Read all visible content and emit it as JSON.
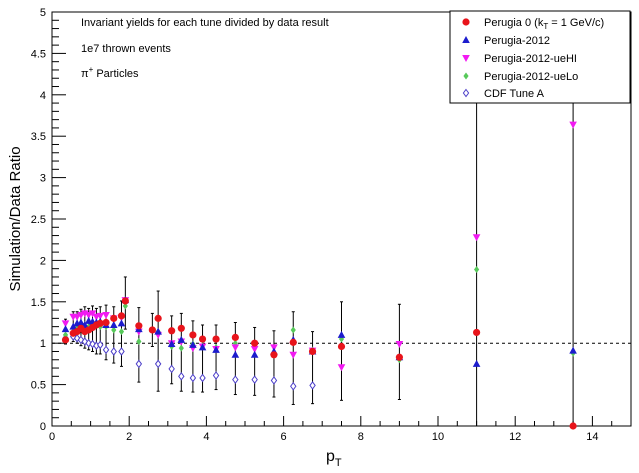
{
  "chart_data": {
    "type": "scatter",
    "xlabel_main": "p",
    "xlabel_sub": "T",
    "ylabel": "Simulation/Data Ratio",
    "xlim": [
      0,
      15
    ],
    "ylim": [
      0,
      5
    ],
    "xticks": [
      0,
      2,
      4,
      6,
      8,
      10,
      12,
      14
    ],
    "yticks": [
      0,
      0.5,
      1,
      1.5,
      2,
      2.5,
      3,
      3.5,
      4,
      4.5,
      5
    ],
    "reference_line": 1,
    "annotations": {
      "line1": "Invariant yields for each tune divided by data result",
      "line2": "1e7 thrown events",
      "line3_main": "π",
      "line3_sup": "+",
      "line3_rest": " Particles"
    },
    "legend_position": "top-right",
    "series": [
      {
        "name": "Perugia 0",
        "name_suffix": " (k",
        "name_sub": "T",
        "name_rest": " = 1 GeV/c)",
        "marker": "circle",
        "color": "#e8141b",
        "fill": true,
        "points": [
          [
            0.35,
            1.04
          ],
          [
            0.55,
            1.12
          ],
          [
            0.65,
            1.14
          ],
          [
            0.75,
            1.18
          ],
          [
            0.85,
            1.14
          ],
          [
            0.95,
            1.16
          ],
          [
            1.05,
            1.19
          ],
          [
            1.15,
            1.22
          ],
          [
            1.25,
            1.24
          ],
          [
            1.4,
            1.25
          ],
          [
            1.6,
            1.3
          ],
          [
            1.8,
            1.33
          ],
          [
            1.9,
            1.51
          ],
          [
            2.25,
            1.21
          ],
          [
            2.6,
            1.16
          ],
          [
            2.75,
            1.3
          ],
          [
            3.1,
            1.15
          ],
          [
            3.35,
            1.18
          ],
          [
            3.65,
            1.1
          ],
          [
            3.9,
            1.05
          ],
          [
            4.25,
            1.05
          ],
          [
            4.75,
            1.07
          ],
          [
            5.25,
            1.0
          ],
          [
            5.75,
            0.86
          ],
          [
            6.25,
            1.01
          ],
          [
            6.75,
            0.9
          ],
          [
            7.5,
            0.96
          ],
          [
            9.0,
            0.83
          ],
          [
            11.0,
            1.13
          ],
          [
            13.5,
            0.0
          ]
        ]
      },
      {
        "name": "Perugia-2012",
        "marker": "triangle-up",
        "color": "#1c1ccd",
        "fill": true,
        "points": [
          [
            0.35,
            1.17
          ],
          [
            0.55,
            1.2
          ],
          [
            0.65,
            1.24
          ],
          [
            0.75,
            1.25
          ],
          [
            0.85,
            1.22
          ],
          [
            0.95,
            1.27
          ],
          [
            1.05,
            1.26
          ],
          [
            1.15,
            1.25
          ],
          [
            1.25,
            1.26
          ],
          [
            1.4,
            1.22
          ],
          [
            1.6,
            1.22
          ],
          [
            1.8,
            1.24
          ],
          [
            1.9,
            1.52
          ],
          [
            2.25,
            1.17
          ],
          [
            2.75,
            1.14
          ],
          [
            3.1,
            0.99
          ],
          [
            3.35,
            1.04
          ],
          [
            3.65,
            0.98
          ],
          [
            3.9,
            0.95
          ],
          [
            4.25,
            0.92
          ],
          [
            4.75,
            0.86
          ],
          [
            5.25,
            0.86
          ],
          [
            5.75,
            0.9
          ],
          [
            6.25,
            1.04
          ],
          [
            6.75,
            0.9
          ],
          [
            7.5,
            1.1
          ],
          [
            9.0,
            0.83
          ],
          [
            11.0,
            0.75
          ],
          [
            13.5,
            0.91
          ]
        ]
      },
      {
        "name": "Perugia-2012-ueHI",
        "marker": "triangle-down",
        "color": "#f21af2",
        "fill": true,
        "points": [
          [
            0.35,
            1.24
          ],
          [
            0.55,
            1.32
          ],
          [
            0.65,
            1.32
          ],
          [
            0.75,
            1.34
          ],
          [
            0.85,
            1.36
          ],
          [
            0.95,
            1.34
          ],
          [
            1.05,
            1.36
          ],
          [
            1.15,
            1.32
          ],
          [
            1.25,
            1.33
          ],
          [
            1.4,
            1.34
          ],
          [
            1.6,
            1.3
          ],
          [
            1.8,
            1.31
          ],
          [
            1.9,
            1.52
          ],
          [
            2.25,
            1.14
          ],
          [
            2.75,
            1.1
          ],
          [
            3.1,
            1.0
          ],
          [
            3.35,
            1.02
          ],
          [
            3.65,
            0.94
          ],
          [
            3.9,
            0.96
          ],
          [
            4.25,
            0.93
          ],
          [
            4.75,
            0.95
          ],
          [
            5.25,
            0.93
          ],
          [
            5.75,
            0.95
          ],
          [
            6.25,
            0.86
          ],
          [
            6.75,
            0.91
          ],
          [
            7.5,
            0.71
          ],
          [
            9.0,
            0.99
          ],
          [
            11.0,
            2.28
          ],
          [
            13.5,
            3.64
          ]
        ]
      },
      {
        "name": "Perugia-2012-ueLo",
        "marker": "diamond",
        "color": "#57c95a",
        "fill": true,
        "points": [
          [
            0.35,
            1.1
          ],
          [
            0.55,
            1.14
          ],
          [
            0.65,
            1.18
          ],
          [
            0.75,
            1.2
          ],
          [
            0.85,
            1.21
          ],
          [
            0.95,
            1.2
          ],
          [
            1.05,
            1.22
          ],
          [
            1.15,
            1.22
          ],
          [
            1.25,
            1.2
          ],
          [
            1.4,
            1.2
          ],
          [
            1.6,
            1.16
          ],
          [
            1.8,
            1.14
          ],
          [
            1.9,
            1.45
          ],
          [
            2.25,
            1.02
          ],
          [
            2.75,
            1.14
          ],
          [
            3.1,
            0.96
          ],
          [
            3.35,
            0.94
          ],
          [
            3.65,
            0.99
          ],
          [
            3.9,
            0.97
          ],
          [
            4.25,
            0.95
          ],
          [
            4.75,
            1.0
          ],
          [
            5.25,
            0.96
          ],
          [
            5.75,
            0.86
          ],
          [
            6.25,
            1.16
          ],
          [
            6.75,
            0.92
          ],
          [
            7.5,
            1.05
          ],
          [
            9.0,
            0.8
          ],
          [
            11.0,
            1.89
          ],
          [
            13.5,
            0.88
          ]
        ]
      },
      {
        "name": "CDF Tune A",
        "marker": "open-diamond",
        "color": "#4c3fc9",
        "fill": false,
        "points": [
          [
            0.35,
            1.06
          ],
          [
            0.55,
            1.08
          ],
          [
            0.65,
            1.06
          ],
          [
            0.75,
            1.04
          ],
          [
            0.85,
            1.02
          ],
          [
            0.95,
            1.0
          ],
          [
            1.05,
            0.99
          ],
          [
            1.15,
            0.97
          ],
          [
            1.25,
            0.98
          ],
          [
            1.4,
            0.92
          ],
          [
            1.6,
            0.9
          ],
          [
            1.8,
            0.9
          ],
          [
            2.25,
            0.75
          ],
          [
            2.75,
            0.75
          ],
          [
            3.1,
            0.69
          ],
          [
            3.35,
            0.6
          ],
          [
            3.65,
            0.58
          ],
          [
            3.9,
            0.58
          ],
          [
            4.25,
            0.61
          ],
          [
            4.75,
            0.56
          ],
          [
            5.25,
            0.56
          ],
          [
            5.75,
            0.55
          ],
          [
            6.25,
            0.48
          ],
          [
            6.75,
            0.49
          ]
        ]
      }
    ],
    "errors": [
      [
        0.35,
        0.05
      ],
      [
        0.55,
        0.06
      ],
      [
        0.65,
        0.06
      ],
      [
        0.75,
        0.07
      ],
      [
        0.85,
        0.08
      ],
      [
        0.95,
        0.08
      ],
      [
        1.05,
        0.09
      ],
      [
        1.15,
        0.1
      ],
      [
        1.25,
        0.11
      ],
      [
        1.4,
        0.12
      ],
      [
        1.6,
        0.14
      ],
      [
        1.8,
        0.18
      ],
      [
        1.9,
        0.28
      ],
      [
        2.25,
        0.22
      ],
      [
        2.6,
        0.2
      ],
      [
        2.75,
        0.33
      ],
      [
        3.1,
        0.18
      ],
      [
        3.35,
        0.18
      ],
      [
        3.65,
        0.17
      ],
      [
        3.9,
        0.17
      ],
      [
        4.25,
        0.17
      ],
      [
        4.75,
        0.18
      ],
      [
        5.25,
        0.19
      ],
      [
        5.75,
        0.2
      ],
      [
        6.25,
        0.22
      ],
      [
        6.75,
        0.22
      ],
      [
        7.5,
        0.4
      ],
      [
        9.0,
        0.48
      ],
      [
        11.0,
        2.07
      ],
      [
        13.5,
        1.82
      ]
    ]
  }
}
